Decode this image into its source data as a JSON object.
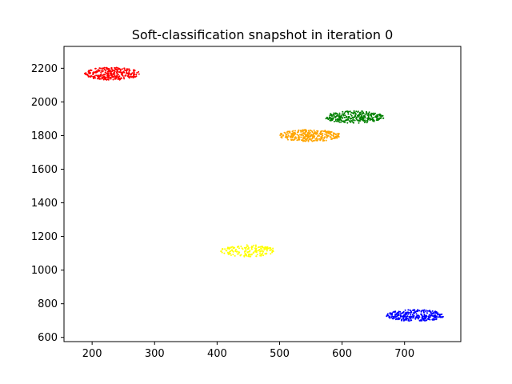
{
  "chart_data": {
    "type": "scatter",
    "title": "Soft-classification snapshot in iteration 0",
    "xlabel": "",
    "ylabel": "",
    "xlim": [
      155,
      790
    ],
    "ylim": [
      575,
      2330
    ],
    "xticks": [
      200,
      300,
      400,
      500,
      600,
      700
    ],
    "yticks": [
      600,
      800,
      1000,
      1200,
      1400,
      1600,
      1800,
      2000,
      2200
    ],
    "grid": false,
    "clusters": [
      {
        "color": "#ff0000",
        "center": [
          232,
          2168
        ],
        "radius": [
          44,
          38
        ],
        "count": 320
      },
      {
        "color": "#008000",
        "center": [
          620,
          1910
        ],
        "radius": [
          48,
          37
        ],
        "count": 300
      },
      {
        "color": "#ffa500",
        "center": [
          548,
          1800
        ],
        "radius": [
          50,
          35
        ],
        "count": 320
      },
      {
        "color": "#ffff00",
        "center": [
          450,
          1115
        ],
        "radius": [
          44,
          35
        ],
        "count": 170
      },
      {
        "color": "#0000ff",
        "center": [
          717,
          730
        ],
        "radius": [
          46,
          35
        ],
        "count": 300
      }
    ]
  }
}
